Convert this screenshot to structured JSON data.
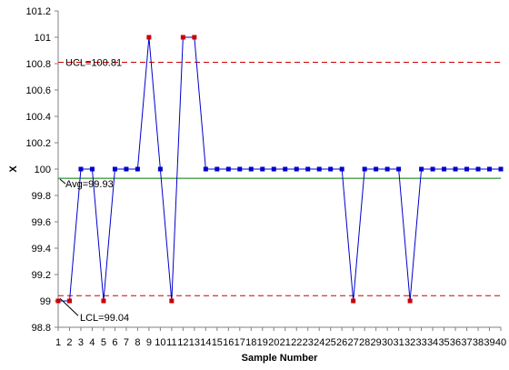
{
  "chart_data": {
    "type": "line",
    "title": "",
    "xlabel": "Sample Number",
    "ylabel": "X",
    "ylim": [
      98.8,
      101.2
    ],
    "yticks": [
      98.8,
      99,
      99.2,
      99.4,
      99.6,
      99.8,
      100,
      100.2,
      100.4,
      100.6,
      100.8,
      101,
      101.2
    ],
    "ytick_labels": [
      "98.8",
      "99",
      "99.2",
      "99.4",
      "99.6",
      "99.8",
      "100",
      "100.2",
      "100.4",
      "100.6",
      "100.8",
      "101",
      "101.2"
    ],
    "x": [
      1,
      2,
      3,
      4,
      5,
      6,
      7,
      8,
      9,
      10,
      11,
      12,
      13,
      14,
      15,
      16,
      17,
      18,
      19,
      20,
      21,
      22,
      23,
      24,
      25,
      26,
      27,
      28,
      29,
      30,
      31,
      32,
      33,
      34,
      35,
      36,
      37,
      38,
      39,
      40
    ],
    "x_labels": [
      "1",
      "2",
      "3",
      "4",
      "5",
      "6",
      "7",
      "8",
      "9",
      "10",
      "11",
      "12",
      "13",
      "14",
      "15",
      "16",
      "17",
      "18",
      "19",
      "20",
      "21",
      "22",
      "23",
      "24",
      "25",
      "26",
      "27",
      "28",
      "29",
      "30",
      "31",
      "32",
      "33",
      "34",
      "35",
      "36",
      "37",
      "38",
      "39",
      "40"
    ],
    "series": [
      {
        "values": [
          99,
          99,
          100,
          100,
          99,
          100,
          100,
          100,
          101,
          100,
          99,
          101,
          101,
          100,
          100,
          100,
          100,
          100,
          100,
          100,
          100,
          100,
          100,
          100,
          100,
          100,
          99,
          100,
          100,
          100,
          100,
          99,
          100,
          100,
          100,
          100,
          100,
          100,
          100,
          100
        ],
        "out_of_control": [
          1,
          2,
          5,
          9,
          11,
          12,
          13,
          27,
          32
        ]
      }
    ],
    "control_lines": {
      "ucl": {
        "value": 100.81,
        "label": "UCL=100.81"
      },
      "avg": {
        "value": 99.93,
        "label": "Avg=99.93"
      },
      "lcl": {
        "value": 99.04,
        "label": "LCL=99.04"
      }
    },
    "grid": false,
    "legend": "none",
    "colors": {
      "line": "#0000CC",
      "marker_normal": "#0000CC",
      "marker_out": "#CC0000",
      "limit_line": "#CC0000",
      "avg_line": "#007700",
      "axis": "#808080"
    }
  }
}
